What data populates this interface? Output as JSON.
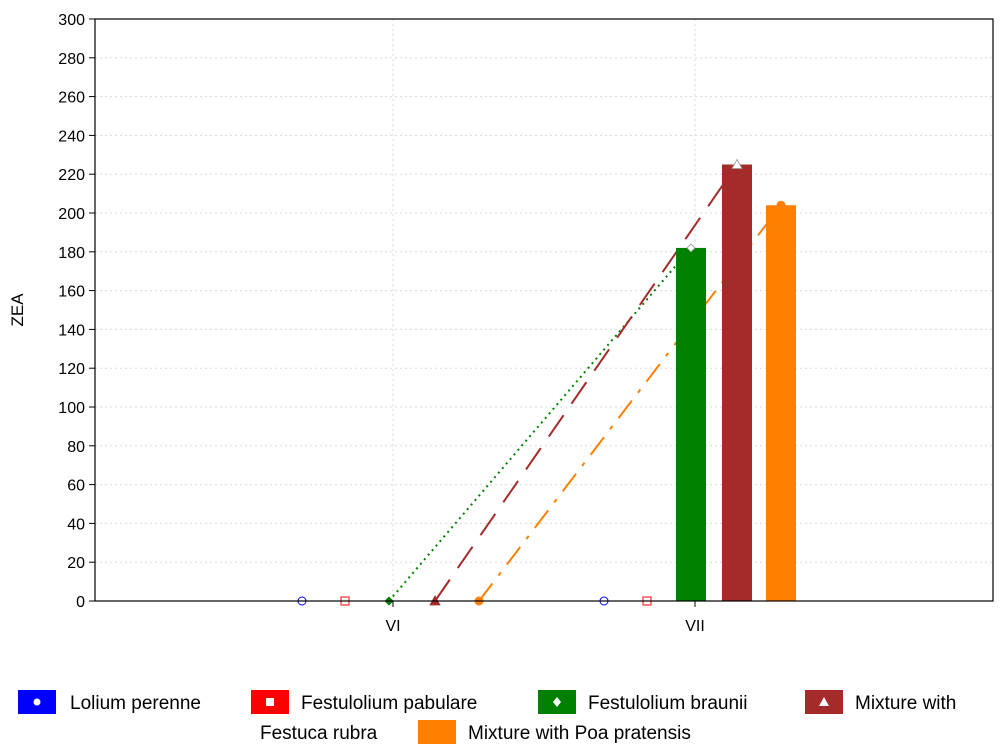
{
  "chart_data": {
    "type": "bar",
    "ylabel": "ZEA",
    "xlabel": "",
    "ylim": [
      0,
      300
    ],
    "y_ticks": [
      0,
      20,
      40,
      60,
      80,
      100,
      120,
      140,
      160,
      180,
      200,
      220,
      240,
      260,
      280,
      300
    ],
    "categories": [
      "VI",
      "VII"
    ],
    "grid": true,
    "legend_position": "bottom",
    "series": [
      {
        "name": "Lolium perenne",
        "values": [
          0,
          0
        ],
        "color": "#0000ff",
        "marker": "circle",
        "line": "none"
      },
      {
        "name": "Festulolium pabulare",
        "values": [
          0,
          0
        ],
        "color": "#ff0000",
        "marker": "square",
        "line": "none"
      },
      {
        "name": "Festulolium braunii",
        "values": [
          0,
          182
        ],
        "color": "#008000",
        "marker": "diamond",
        "line": "dotted"
      },
      {
        "name": "Mixture with Festuca rubra",
        "values": [
          0,
          225
        ],
        "color": "#a52a2a",
        "marker": "triangle",
        "line": "long-dash"
      },
      {
        "name": "Mixture with Poa pratensis",
        "values": [
          0,
          204
        ],
        "color": "#ff8000",
        "marker": "circle-filled",
        "line": "dash-dot"
      }
    ],
    "legend": {
      "row1": [
        "Lolium perenne",
        "Festulolium pabulare",
        "Festulolium braunii",
        "Mixture with"
      ],
      "row2_prefix": "Festuca rubra",
      "row2": [
        "Mixture with Poa pratensis"
      ]
    }
  }
}
